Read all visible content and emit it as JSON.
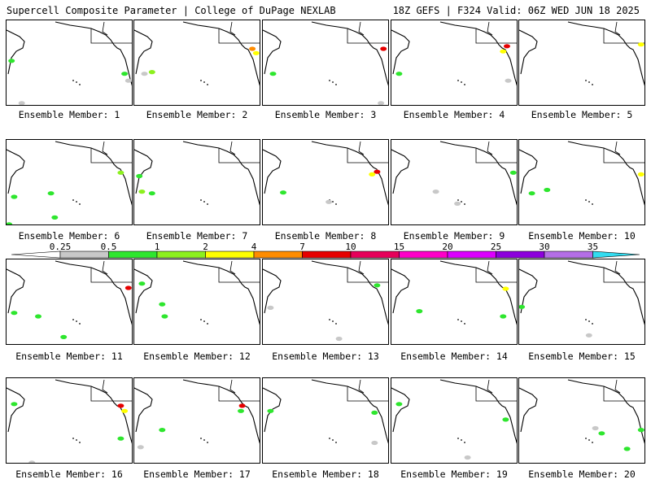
{
  "header": {
    "left": "Supercell Composite Parameter | College of DuPage NEXLAB",
    "right": "18Z GEFS | F324 Valid: 06Z WED JUN 18 2025"
  },
  "colorbar": {
    "ticks": [
      "0.25",
      "0.5",
      "1",
      "2",
      "4",
      "7",
      "10",
      "15",
      "20",
      "25",
      "30",
      "35"
    ],
    "colors": [
      "#ffffff",
      "#c8c8c8",
      "#2ee62e",
      "#8cf01e",
      "#ffff00",
      "#ff8c00",
      "#e60000",
      "#e6005a",
      "#ff00c8",
      "#dc00ff",
      "#8c00dc",
      "#b46ee6",
      "#32dcf0"
    ]
  },
  "members": [
    {
      "label": "Ensemble Member: 1",
      "spots": [
        [
          0.04,
          0.47,
          "#2ee62e"
        ],
        [
          0.93,
          0.62,
          "#2ee62e"
        ],
        [
          0.96,
          0.7,
          "#c8c8c8"
        ],
        [
          0.12,
          0.96,
          "#c8c8c8"
        ]
      ]
    },
    {
      "label": "Ensemble Member: 2",
      "spots": [
        [
          0.93,
          0.33,
          "#ff8c00"
        ],
        [
          0.96,
          0.38,
          "#ffff00"
        ],
        [
          0.08,
          0.62,
          "#c8c8c8"
        ],
        [
          0.14,
          0.6,
          "#8cf01e"
        ]
      ]
    },
    {
      "label": "Ensemble Member: 3",
      "spots": [
        [
          0.08,
          0.62,
          "#2ee62e"
        ],
        [
          0.95,
          0.33,
          "#e60000"
        ],
        [
          0.93,
          0.96,
          "#c8c8c8"
        ]
      ]
    },
    {
      "label": "Ensemble Member: 4",
      "spots": [
        [
          0.91,
          0.3,
          "#e60000"
        ],
        [
          0.88,
          0.36,
          "#ffff00"
        ],
        [
          0.06,
          0.62,
          "#2ee62e"
        ],
        [
          0.92,
          0.7,
          "#c8c8c8"
        ]
      ]
    },
    {
      "label": "Ensemble Member: 5",
      "spots": [
        [
          0.96,
          0.28,
          "#ffff00"
        ]
      ]
    },
    {
      "label": "Ensemble Member: 6",
      "spots": [
        [
          0.06,
          0.66,
          "#2ee62e"
        ],
        [
          0.9,
          0.38,
          "#8cf01e"
        ],
        [
          0.35,
          0.62,
          "#2ee62e"
        ],
        [
          0.38,
          0.9,
          "#2ee62e"
        ],
        [
          0.02,
          0.98,
          "#2ee62e"
        ]
      ]
    },
    {
      "label": "Ensemble Member: 7",
      "spots": [
        [
          0.06,
          0.6,
          "#8cf01e"
        ],
        [
          0.14,
          0.62,
          "#2ee62e"
        ],
        [
          0.04,
          0.42,
          "#2ee62e"
        ]
      ]
    },
    {
      "label": "Ensemble Member: 8",
      "spots": [
        [
          0.9,
          0.37,
          "#e60000"
        ],
        [
          0.86,
          0.4,
          "#ffff00"
        ],
        [
          0.16,
          0.61,
          "#2ee62e"
        ],
        [
          0.52,
          0.72,
          "#c8c8c8"
        ]
      ]
    },
    {
      "label": "Ensemble Member: 9",
      "spots": [
        [
          0.96,
          0.38,
          "#2ee62e"
        ],
        [
          0.35,
          0.6,
          "#c8c8c8"
        ],
        [
          0.52,
          0.74,
          "#c8c8c8"
        ]
      ]
    },
    {
      "label": "Ensemble Member: 10",
      "spots": [
        [
          0.1,
          0.62,
          "#2ee62e"
        ],
        [
          0.22,
          0.58,
          "#2ee62e"
        ],
        [
          0.96,
          0.4,
          "#ffff00"
        ]
      ]
    },
    {
      "label": "Ensemble Member: 11",
      "spots": [
        [
          0.25,
          0.66,
          "#2ee62e"
        ],
        [
          0.06,
          0.62,
          "#2ee62e"
        ],
        [
          0.96,
          0.33,
          "#e60000"
        ],
        [
          0.45,
          0.9,
          "#2ee62e"
        ]
      ]
    },
    {
      "label": "Ensemble Member: 12",
      "spots": [
        [
          0.24,
          0.66,
          "#2ee62e"
        ],
        [
          0.22,
          0.52,
          "#2ee62e"
        ],
        [
          0.06,
          0.28,
          "#2ee62e"
        ]
      ]
    },
    {
      "label": "Ensemble Member: 13",
      "spots": [
        [
          0.9,
          0.3,
          "#2ee62e"
        ],
        [
          0.06,
          0.56,
          "#c8c8c8"
        ],
        [
          0.6,
          0.92,
          "#c8c8c8"
        ]
      ]
    },
    {
      "label": "Ensemble Member: 14",
      "spots": [
        [
          0.22,
          0.6,
          "#2ee62e"
        ],
        [
          0.88,
          0.66,
          "#2ee62e"
        ],
        [
          0.9,
          0.34,
          "#ffff00"
        ]
      ]
    },
    {
      "label": "Ensemble Member: 15",
      "spots": [
        [
          0.02,
          0.55,
          "#2ee62e"
        ],
        [
          0.55,
          0.88,
          "#c8c8c8"
        ]
      ]
    },
    {
      "label": "Ensemble Member: 16",
      "spots": [
        [
          0.9,
          0.32,
          "#e60000"
        ],
        [
          0.93,
          0.38,
          "#ffff00"
        ],
        [
          0.06,
          0.3,
          "#2ee62e"
        ],
        [
          0.9,
          0.7,
          "#2ee62e"
        ],
        [
          0.2,
          0.98,
          "#c8c8c8"
        ]
      ]
    },
    {
      "label": "Ensemble Member: 17",
      "spots": [
        [
          0.85,
          0.32,
          "#e60000"
        ],
        [
          0.84,
          0.38,
          "#2ee62e"
        ],
        [
          0.22,
          0.6,
          "#2ee62e"
        ],
        [
          0.05,
          0.8,
          "#c8c8c8"
        ]
      ]
    },
    {
      "label": "Ensemble Member: 18",
      "spots": [
        [
          0.88,
          0.4,
          "#2ee62e"
        ],
        [
          0.06,
          0.38,
          "#2ee62e"
        ],
        [
          0.88,
          0.75,
          "#c8c8c8"
        ]
      ]
    },
    {
      "label": "Ensemble Member: 19",
      "spots": [
        [
          0.9,
          0.48,
          "#2ee62e"
        ],
        [
          0.06,
          0.3,
          "#2ee62e"
        ],
        [
          0.6,
          0.92,
          "#c8c8c8"
        ]
      ]
    },
    {
      "label": "Ensemble Member: 20",
      "spots": [
        [
          0.65,
          0.64,
          "#2ee62e"
        ],
        [
          0.6,
          0.58,
          "#c8c8c8"
        ],
        [
          0.85,
          0.82,
          "#2ee62e"
        ],
        [
          0.96,
          0.6,
          "#2ee62e"
        ]
      ]
    }
  ]
}
